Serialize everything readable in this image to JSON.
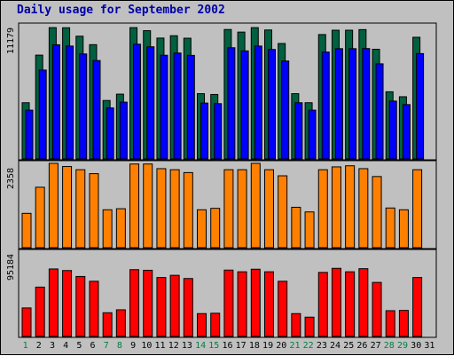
{
  "chart_data": {
    "type": "bar",
    "title": "Daily usage for September 2002",
    "categories": [
      "1",
      "2",
      "3",
      "4",
      "5",
      "6",
      "7",
      "8",
      "9",
      "10",
      "11",
      "12",
      "13",
      "14",
      "15",
      "16",
      "17",
      "18",
      "19",
      "20",
      "21",
      "22",
      "23",
      "24",
      "25",
      "26",
      "27",
      "28",
      "29",
      "30",
      "31"
    ],
    "weekend_days": [
      "1",
      "7",
      "8",
      "14",
      "15",
      "21",
      "22",
      "28",
      "29"
    ],
    "grid": false,
    "legend": "none",
    "panels": [
      {
        "name": "hits-pages",
        "ymax_label": "11179",
        "ylim": [
          0,
          11179
        ],
        "series": [
          {
            "color": "#006040",
            "values": [
              4780,
              8830,
              11170,
              11160,
              10440,
              9720,
              4970,
              5510,
              11170,
              10910,
              10280,
              10480,
              10270,
              5550,
              5480,
              11010,
              10790,
              11170,
              10970,
              9820,
              5550,
              4780,
              10580,
              10950,
              10950,
              11000,
              9330,
              5710,
              5290,
              10350
            ]
          },
          {
            "color": "#0000ff",
            "values": [
              4150,
              7560,
              9710,
              9600,
              8930,
              8370,
              4340,
              4830,
              9760,
              9540,
              8820,
              9010,
              8810,
              4750,
              4700,
              9460,
              9190,
              9600,
              9310,
              8330,
              4780,
              4150,
              9090,
              9380,
              9380,
              9390,
              8090,
              4920,
              4620,
              8960
            ]
          }
        ]
      },
      {
        "name": "sites",
        "ymax_label": "2358",
        "ylim": [
          0,
          2358
        ],
        "series": [
          {
            "color": "#ff8000",
            "values": [
              960,
              1690,
              2358,
              2270,
              2180,
              2070,
              1060,
              1090,
              2340,
              2340,
              2210,
              2180,
              2100,
              1060,
              1100,
              2180,
              2180,
              2358,
              2180,
              2010,
              1130,
              1000,
              2180,
              2260,
              2290,
              2210,
              1990,
              1110,
              1060,
              2180
            ]
          }
        ]
      },
      {
        "name": "kbytes",
        "ymax_label": "95184",
        "ylim": [
          0,
          95184
        ],
        "series": [
          {
            "color": "#ff0000",
            "values": [
              32200,
              55700,
              76200,
              74400,
              67700,
              62300,
              26800,
              30100,
              75400,
              74700,
              66500,
              69000,
              65400,
              25800,
              26200,
              74900,
              73000,
              75900,
              73000,
              62300,
              25800,
              21800,
              72300,
              76900,
              73000,
              76500,
              61000,
              29100,
              29400,
              66500
            ]
          }
        ]
      }
    ]
  },
  "colors": {
    "frame": "#c0c0c0",
    "plot_background": "#c0c0c0",
    "title": "#0000a8",
    "weekday_label": "#000000",
    "weekend_label": "#008040"
  }
}
